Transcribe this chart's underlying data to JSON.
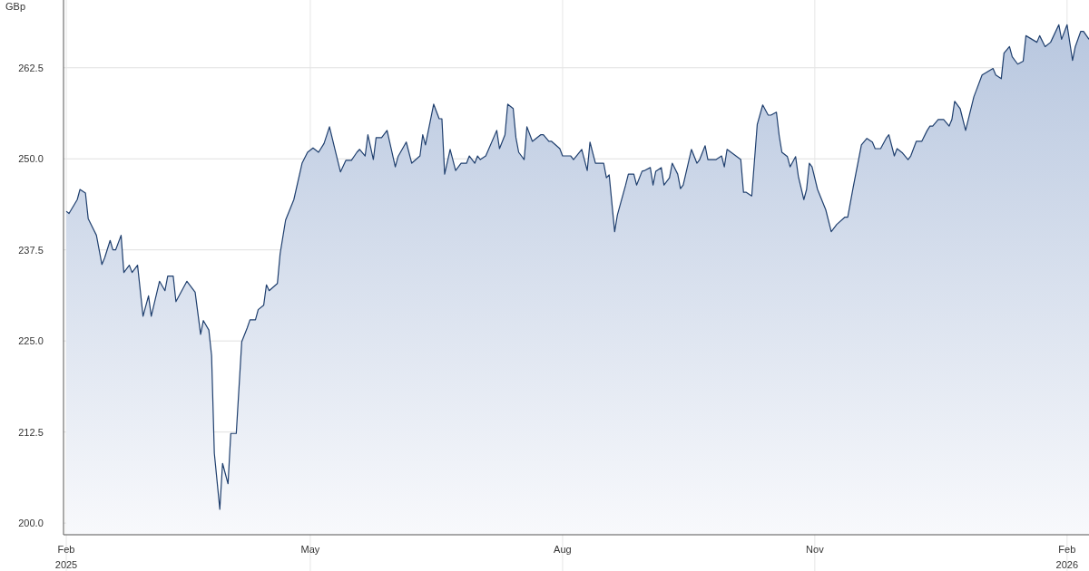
{
  "chart_data": {
    "type": "area",
    "ylabel": "GBp",
    "xlim": [
      "2025-01-31",
      "2026-02-09"
    ],
    "xticks": [
      {
        "value": "2025-02-01",
        "label": "Feb\n2025"
      },
      {
        "value": "2025-05-01",
        "label": "May"
      },
      {
        "value": "2025-08-01",
        "label": "Aug"
      },
      {
        "value": "2025-11-01",
        "label": "Nov"
      },
      {
        "value": "2026-02-01",
        "label": "Feb\n2026"
      }
    ],
    "ylim": [
      198.4,
      271.8
    ],
    "yticks": [
      {
        "value": 200,
        "label": "200.0"
      },
      {
        "value": 212.5,
        "label": "212.5"
      },
      {
        "value": 225,
        "label": "225.0"
      },
      {
        "value": 237.5,
        "label": "237.5"
      },
      {
        "value": 250,
        "label": "250.0"
      },
      {
        "value": 262.5,
        "label": "262.5"
      }
    ],
    "grid": true,
    "x": [
      "2025-02-01",
      "2025-02-02",
      "2025-02-05",
      "2025-02-06",
      "2025-02-08",
      "2025-02-09",
      "2025-02-12",
      "2025-02-14",
      "2025-02-15",
      "2025-02-17",
      "2025-02-18",
      "2025-02-19",
      "2025-02-21",
      "2025-02-22",
      "2025-02-24",
      "2025-02-25",
      "2025-02-27",
      "2025-03-01",
      "2025-03-03",
      "2025-03-04",
      "2025-03-07",
      "2025-03-09",
      "2025-03-10",
      "2025-03-12",
      "2025-03-13",
      "2025-03-17",
      "2025-03-20",
      "2025-03-22",
      "2025-03-23",
      "2025-03-25",
      "2025-03-26",
      "2025-03-27",
      "2025-03-29",
      "2025-03-30",
      "2025-04-01",
      "2025-04-02",
      "2025-04-04",
      "2025-04-06",
      "2025-04-08",
      "2025-04-09",
      "2025-04-11",
      "2025-04-12",
      "2025-04-14",
      "2025-04-15",
      "2025-04-16",
      "2025-04-19",
      "2025-04-20",
      "2025-04-22",
      "2025-04-25",
      "2025-04-28",
      "2025-04-30",
      "2025-05-02",
      "2025-05-04",
      "2025-05-06",
      "2025-05-08",
      "2025-05-10",
      "2025-05-12",
      "2025-05-14",
      "2025-05-16",
      "2025-05-18",
      "2025-05-19",
      "2025-05-21",
      "2025-05-22",
      "2025-05-24",
      "2025-05-25",
      "2025-05-27",
      "2025-05-29",
      "2025-06-01",
      "2025-06-02",
      "2025-06-05",
      "2025-06-07",
      "2025-06-10",
      "2025-06-11",
      "2025-06-12",
      "2025-06-15",
      "2025-06-17",
      "2025-06-18",
      "2025-06-19",
      "2025-06-21",
      "2025-06-23",
      "2025-06-25",
      "2025-06-27",
      "2025-06-28",
      "2025-06-30",
      "2025-07-01",
      "2025-07-02",
      "2025-07-04",
      "2025-07-08",
      "2025-07-09",
      "2025-07-11",
      "2025-07-12",
      "2025-07-14",
      "2025-07-15",
      "2025-07-16",
      "2025-07-18",
      "2025-07-19",
      "2025-07-21",
      "2025-07-24",
      "2025-07-25",
      "2025-07-27",
      "2025-07-28",
      "2025-07-31",
      "2025-08-01",
      "2025-08-04",
      "2025-08-05",
      "2025-08-08",
      "2025-08-10",
      "2025-08-11",
      "2025-08-13",
      "2025-08-16",
      "2025-08-17",
      "2025-08-18",
      "2025-08-20",
      "2025-08-21",
      "2025-08-24",
      "2025-08-25",
      "2025-08-27",
      "2025-08-28",
      "2025-08-30",
      "2025-08-31",
      "2025-09-02",
      "2025-09-03",
      "2025-09-04",
      "2025-09-06",
      "2025-09-07",
      "2025-09-09",
      "2025-09-10",
      "2025-09-12",
      "2025-09-13",
      "2025-09-14",
      "2025-09-17",
      "2025-09-19",
      "2025-09-20",
      "2025-09-22",
      "2025-09-23",
      "2025-09-26",
      "2025-09-28",
      "2025-09-29",
      "2025-09-30",
      "2025-10-05",
      "2025-10-06",
      "2025-10-07",
      "2025-10-09",
      "2025-10-11",
      "2025-10-13",
      "2025-10-15",
      "2025-10-16",
      "2025-10-18",
      "2025-10-19",
      "2025-10-20",
      "2025-10-22",
      "2025-10-23",
      "2025-10-25",
      "2025-10-26",
      "2025-10-28",
      "2025-10-29",
      "2025-10-30",
      "2025-10-31",
      "2025-11-02",
      "2025-11-05",
      "2025-11-07",
      "2025-11-09",
      "2025-11-12",
      "2025-11-13",
      "2025-11-15",
      "2025-11-18",
      "2025-11-20",
      "2025-11-22",
      "2025-11-23",
      "2025-11-25",
      "2025-11-27",
      "2025-11-28",
      "2025-11-30",
      "2025-12-01",
      "2025-12-03",
      "2025-12-05",
      "2025-12-06",
      "2025-12-08",
      "2025-12-10",
      "2025-12-12",
      "2025-12-13",
      "2025-12-14",
      "2025-12-16",
      "2025-12-18",
      "2025-12-20",
      "2025-12-21",
      "2025-12-22",
      "2025-12-24",
      "2025-12-26",
      "2025-12-29",
      "2025-12-30",
      "2026-01-01",
      "2026-01-05",
      "2026-01-06",
      "2026-01-08",
      "2026-01-09",
      "2026-01-11",
      "2026-01-12",
      "2026-01-14",
      "2026-01-16",
      "2026-01-17",
      "2026-01-21",
      "2026-01-22",
      "2026-01-24",
      "2026-01-26",
      "2026-01-29",
      "2026-01-30",
      "2026-02-01",
      "2026-02-03",
      "2026-02-04",
      "2026-02-06",
      "2026-02-07",
      "2026-02-09"
    ],
    "series": [
      {
        "color": "#1f3f6e",
        "values": [
          242.8,
          242.5,
          244.4,
          245.8,
          245.3,
          241.8,
          239.5,
          235.5,
          236.4,
          238.8,
          237.5,
          237.5,
          239.5,
          234.4,
          235.4,
          234.4,
          235.4,
          228.4,
          231.2,
          228.4,
          233.2,
          231.9,
          233.9,
          233.9,
          230.4,
          233.2,
          231.7,
          225.9,
          227.8,
          226.5,
          223.0,
          209.6,
          201.9,
          208.2,
          205.4,
          212.3,
          212.3,
          224.9,
          226.8,
          227.9,
          227.9,
          229.3,
          229.9,
          232.7,
          231.9,
          232.9,
          237.0,
          241.6,
          244.4,
          249.4,
          250.9,
          251.5,
          250.9,
          252.1,
          254.4,
          251.3,
          248.2,
          249.8,
          249.8,
          250.9,
          251.3,
          250.4,
          253.3,
          249.9,
          252.9,
          252.9,
          253.9,
          248.9,
          250.3,
          252.3,
          249.4,
          250.4,
          253.3,
          251.9,
          257.5,
          255.5,
          255.5,
          247.9,
          251.3,
          248.4,
          249.4,
          249.4,
          250.4,
          249.4,
          250.4,
          249.9,
          250.4,
          253.9,
          251.4,
          253.3,
          257.5,
          256.9,
          252.9,
          250.9,
          249.9,
          254.4,
          252.4,
          253.3,
          253.3,
          252.4,
          252.4,
          251.4,
          250.4,
          250.4,
          249.9,
          251.3,
          248.4,
          252.3,
          249.4,
          249.4,
          247.4,
          247.8,
          240.0,
          242.3,
          246.4,
          247.9,
          247.9,
          246.4,
          248.3,
          248.4,
          248.8,
          246.4,
          248.3,
          248.8,
          246.4,
          247.4,
          249.4,
          247.9,
          245.9,
          246.4,
          251.3,
          249.4,
          249.9,
          251.8,
          249.9,
          249.9,
          250.4,
          248.9,
          251.3,
          249.9,
          245.4,
          245.4,
          244.9,
          254.7,
          257.4,
          256.0,
          256.0,
          256.4,
          253.2,
          250.9,
          250.3,
          248.9,
          250.3,
          247.6,
          244.4,
          245.8,
          249.4,
          248.9,
          245.8,
          243.0,
          240.0,
          241.0,
          242.0,
          242.0,
          246.1,
          251.9,
          252.8,
          252.3,
          251.4,
          251.4,
          252.8,
          253.3,
          250.4,
          251.4,
          250.8,
          249.9,
          250.4,
          252.4,
          252.4,
          253.9,
          254.5,
          254.5,
          255.4,
          255.4,
          254.5,
          255.4,
          257.9,
          256.9,
          253.9,
          258.5,
          259.5,
          261.5,
          262.4,
          261.5,
          261.0,
          264.5,
          265.4,
          264.0,
          263.0,
          263.4,
          266.9,
          266.0,
          266.9,
          265.4,
          266.0,
          268.4,
          266.4,
          268.4,
          263.5,
          265.4,
          267.5,
          267.5,
          266.4
        ]
      }
    ]
  }
}
